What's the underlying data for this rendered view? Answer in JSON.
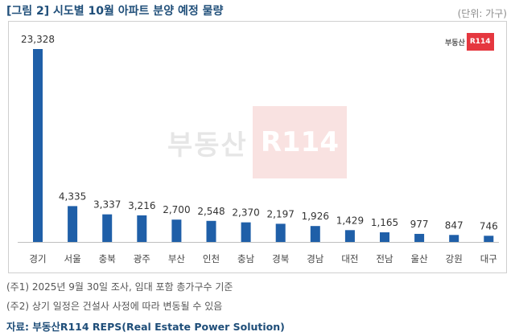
{
  "header": {
    "title": "[그림 2] 시도별 10월 아파트 분양 예정 물량",
    "unit": "(단위: 가구)"
  },
  "logo": {
    "text": "부동산",
    "box_text": "R114"
  },
  "watermark": {
    "text": "부동산",
    "box_text": "R114"
  },
  "colors": {
    "bar": "#1f5fa8",
    "title": "#1f4e79",
    "brand_red": "#e5373f"
  },
  "chart_data": {
    "type": "bar",
    "categories": [
      "경기",
      "서울",
      "충북",
      "광주",
      "부산",
      "인천",
      "충남",
      "경북",
      "경남",
      "대전",
      "전남",
      "울산",
      "강원",
      "대구"
    ],
    "values": [
      23328,
      4335,
      3337,
      3216,
      2700,
      2548,
      2370,
      2197,
      1926,
      1429,
      1165,
      977,
      847,
      746
    ],
    "value_labels": [
      "23,328",
      "4,335",
      "3,337",
      "3,216",
      "2,700",
      "2,548",
      "2,370",
      "2,197",
      "1,926",
      "1,429",
      "1,165",
      "977",
      "847",
      "746"
    ],
    "ylim": [
      0,
      23328
    ],
    "grid": false,
    "legend": "none"
  },
  "notes": [
    "(주1) 2025년 9월 30일 조사, 임대 포함 총가구수 기준",
    "(주2) 상기 일정은 건설사 사정에 따라 변동될 수 있음"
  ],
  "source": "자료: 부동산R114 REPS(Real Estate Power Solution)"
}
